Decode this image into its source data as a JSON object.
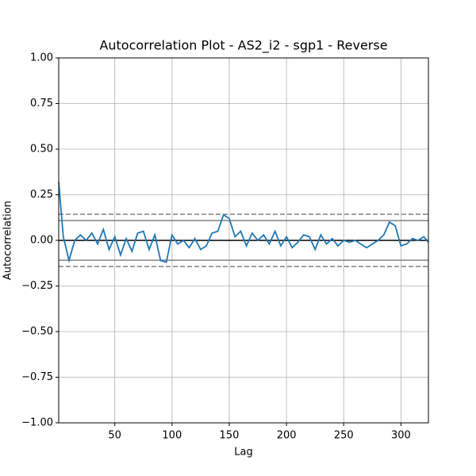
{
  "chart_data": {
    "type": "line",
    "title": "Autocorrelation Plot - AS2_i2 - sgp1 - Reverse",
    "x_label": "Lag",
    "y_label": "Autocorrelation",
    "xlim": [
      1,
      324
    ],
    "ylim": [
      -1,
      1
    ],
    "xticks": [
      50,
      100,
      150,
      200,
      250,
      300
    ],
    "yticks": [
      {
        "value": -1,
        "label": "−1.00"
      },
      {
        "value": -0.75,
        "label": "−0.75"
      },
      {
        "value": -0.5,
        "label": "−0.50"
      },
      {
        "value": -0.25,
        "label": "−0.25"
      },
      {
        "value": 0,
        "label": "0.00"
      },
      {
        "value": 0.25,
        "label": "0.25"
      },
      {
        "value": 0.5,
        "label": "0.50"
      },
      {
        "value": 0.75,
        "label": "0.75"
      },
      {
        "value": 1,
        "label": "1.00"
      }
    ],
    "grid": true,
    "reference_lines": [
      {
        "value": 0,
        "color": "#000000",
        "style": "solid"
      },
      {
        "value": 0.1089,
        "color": "#808080",
        "style": "solid"
      },
      {
        "value": -0.1089,
        "color": "#808080",
        "style": "solid"
      },
      {
        "value": 0.1431,
        "color": "#808080",
        "style": "dashed"
      },
      {
        "value": -0.1431,
        "color": "#808080",
        "style": "dashed"
      }
    ],
    "series": [
      {
        "color": "#1f77b4",
        "x": [
          1,
          5,
          10,
          15,
          20,
          25,
          30,
          35,
          40,
          45,
          50,
          55,
          60,
          65,
          70,
          75,
          80,
          85,
          90,
          95,
          100,
          105,
          110,
          115,
          120,
          125,
          130,
          135,
          140,
          145,
          150,
          155,
          160,
          165,
          170,
          175,
          180,
          185,
          190,
          195,
          200,
          205,
          210,
          215,
          220,
          225,
          230,
          235,
          240,
          245,
          250,
          255,
          260,
          265,
          270,
          275,
          280,
          285,
          290,
          295,
          300,
          305,
          310,
          315,
          320,
          324
        ],
        "values": [
          0.32,
          0.02,
          -0.11,
          0.0,
          0.03,
          0.0,
          0.04,
          -0.02,
          0.06,
          -0.05,
          0.02,
          -0.08,
          0.01,
          -0.06,
          0.04,
          0.05,
          -0.05,
          0.03,
          -0.11,
          -0.12,
          0.03,
          -0.02,
          0.0,
          -0.04,
          0.01,
          -0.05,
          -0.03,
          0.04,
          0.05,
          0.14,
          0.12,
          0.02,
          0.05,
          -0.03,
          0.04,
          0.0,
          0.03,
          -0.02,
          0.05,
          -0.03,
          0.02,
          -0.04,
          -0.01,
          0.03,
          0.02,
          -0.05,
          0.03,
          -0.02,
          0.01,
          -0.03,
          0.0,
          -0.01,
          0.0,
          -0.02,
          -0.04,
          -0.02,
          0.0,
          0.03,
          0.1,
          0.08,
          -0.03,
          -0.02,
          0.01,
          0.0,
          0.02,
          -0.01
        ]
      }
    ]
  }
}
